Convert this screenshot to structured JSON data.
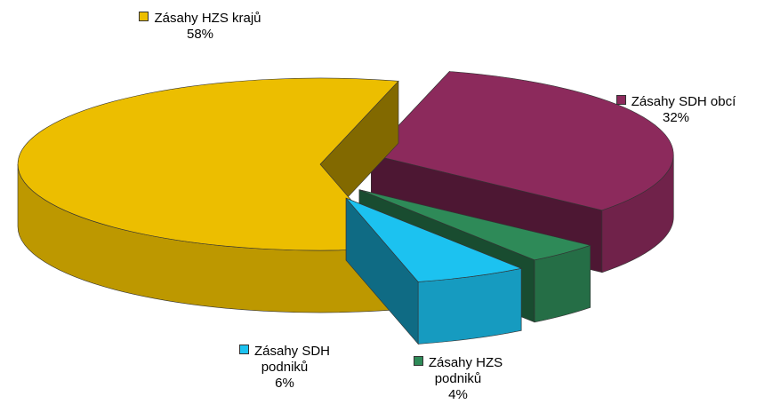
{
  "chart_data": {
    "type": "pie",
    "categories": [
      "Zásahy HZS krajů",
      "Zásahy SDH obcí",
      "Zásahy SDH podniků",
      "Zásahy HZS podniků"
    ],
    "values": [
      58,
      32,
      6,
      4
    ],
    "value_labels": [
      "58%",
      "32%",
      "6%",
      "4%"
    ],
    "colors": [
      "#ecbe00",
      "#8c2a5c",
      "#1cc2f0",
      "#2e8a58"
    ]
  }
}
